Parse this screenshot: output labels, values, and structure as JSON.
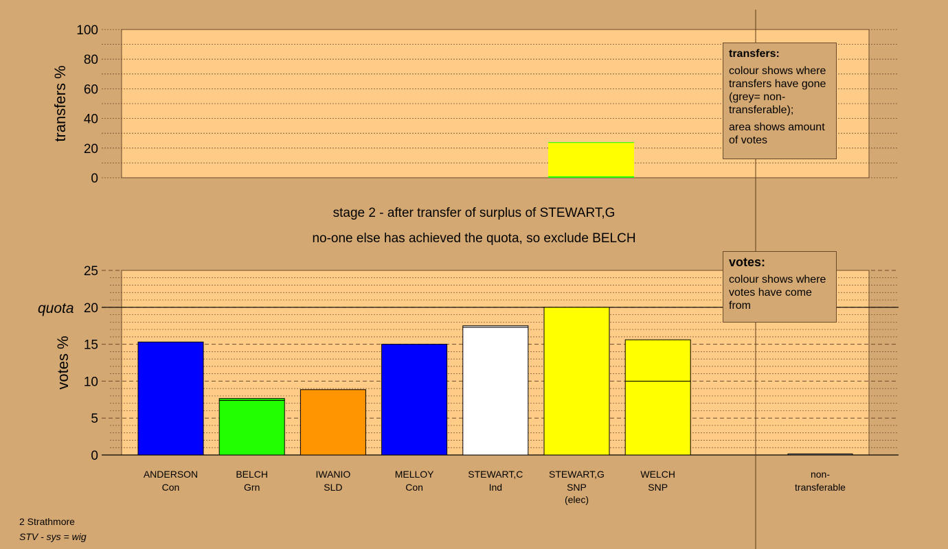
{
  "captions": {
    "line1": "stage 2 - after transfer of surplus of STEWART,G",
    "line2": "no-one else has achieved the quota, so exclude BELCH"
  },
  "legends": {
    "transfers": {
      "title": "transfers:",
      "line1": "colour shows where transfers have gone (grey= non-transferable);",
      "line2": "area shows amount of votes"
    },
    "votes": {
      "title": "votes:",
      "line1": "colour shows where votes have come from"
    }
  },
  "footer": {
    "line1": "2 Strathmore",
    "line2": "STV - sys = wig"
  },
  "colors": {
    "background": "#d4a872",
    "plot_area": "#ffcc88",
    "Con": "#0000ff",
    "Grn": "#22ff00",
    "SLD": "#ff9500",
    "Ind": "#ffffff",
    "SNP": "#ffff00"
  },
  "chart_data": [
    {
      "type": "bar",
      "name": "transfers",
      "ylabel": "transfers %",
      "ylim": [
        0,
        100
      ],
      "yticks": [
        0,
        20,
        40,
        60,
        80,
        100
      ],
      "grid": true,
      "bars": [
        {
          "slot": 5,
          "segments": [
            {
              "value": 1.0,
              "color": "#22ff00"
            },
            {
              "value": 22.5,
              "color": "#ffff00"
            },
            {
              "value": 0.5,
              "color": "#22ff00"
            }
          ]
        }
      ]
    },
    {
      "type": "bar",
      "name": "votes",
      "ylabel": "votes %",
      "ylim": [
        0,
        25
      ],
      "yticks": [
        0,
        5,
        10,
        15,
        20,
        25
      ],
      "quota": {
        "label": "quota",
        "value": 20
      },
      "grid": true,
      "categories": [
        {
          "name": "ANDERSON",
          "party": "Con",
          "note": ""
        },
        {
          "name": "BELCH",
          "party": "Grn",
          "note": ""
        },
        {
          "name": "IWANIO",
          "party": "SLD",
          "note": ""
        },
        {
          "name": "MELLOY",
          "party": "Con",
          "note": ""
        },
        {
          "name": "STEWART,C",
          "party": "Ind",
          "note": ""
        },
        {
          "name": "STEWART,G",
          "party": "SNP",
          "note": "(elec)"
        },
        {
          "name": "WELCH",
          "party": "SNP",
          "note": ""
        }
      ],
      "nontransferable": {
        "line1": "non-",
        "line2": "transferable",
        "value": 0.15
      },
      "bars": [
        {
          "segments": [
            {
              "value": 15.3,
              "color": "#0000ff"
            }
          ]
        },
        {
          "segments": [
            {
              "value": 7.4,
              "color": "#22ff00"
            },
            {
              "value": 0.25,
              "color": "#22ff00"
            }
          ]
        },
        {
          "segments": [
            {
              "value": 8.85,
              "color": "#ff9500"
            }
          ]
        },
        {
          "segments": [
            {
              "value": 15.0,
              "color": "#0000ff"
            }
          ]
        },
        {
          "segments": [
            {
              "value": 17.3,
              "color": "#ffffff"
            },
            {
              "value": 0.2,
              "color": "#ffffff"
            }
          ]
        },
        {
          "segments": [
            {
              "value": 20.0,
              "color": "#ffff00"
            }
          ]
        },
        {
          "segments": [
            {
              "value": 10.0,
              "color": "#ffff00"
            },
            {
              "value": 5.6,
              "color": "#ffff00"
            }
          ]
        }
      ]
    }
  ]
}
